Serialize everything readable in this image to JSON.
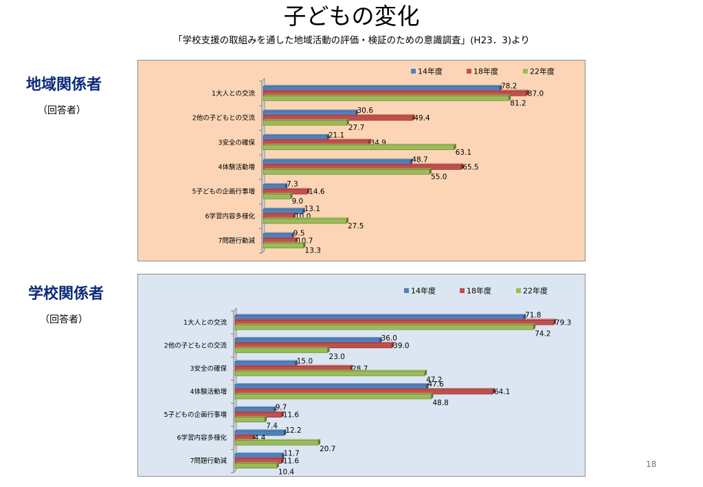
{
  "title": "子どもの変化",
  "subtitle": "「学校支援の取組みを通した地域活動の評価・検証のための意識調査」(H23．3)より",
  "page_number": "18",
  "colors": {
    "s14": "#4f81bd",
    "s18": "#c0504d",
    "s22": "#9bbb59",
    "panel1_bg": "#fbd5b5",
    "panel2_bg": "#dce6f2"
  },
  "sections": [
    {
      "heading": "地域関係者",
      "respondents": "（回答者）"
    },
    {
      "heading": "学校関係者",
      "respondents": "（回答者）"
    }
  ],
  "chart_data": [
    {
      "type": "bar",
      "orientation": "horizontal",
      "categories": [
        "1大人との交流",
        "2他の子どもとの交流",
        "3安全の確保",
        "4体験活動増",
        "5子どもの企画行事増",
        "6学習内容多様化",
        "7問題行動減"
      ],
      "series": [
        {
          "name": "14年度",
          "values": [
            78.2,
            30.6,
            21.1,
            48.7,
            7.3,
            13.1,
            9.5
          ]
        },
        {
          "name": "18年度",
          "values": [
            87.0,
            49.4,
            34.9,
            65.5,
            14.6,
            10.0,
            10.7
          ]
        },
        {
          "name": "22年度",
          "values": [
            81.2,
            27.7,
            63.1,
            55.0,
            9.0,
            27.5,
            13.3
          ]
        }
      ],
      "value_labels": [
        [
          "78.2",
          "30.6",
          "21.1",
          "48.7",
          "7.3",
          "13.1",
          "9.5"
        ],
        [
          "87.0",
          "49.4",
          "34.9",
          "65.5",
          "14.6",
          "10.0",
          "10.7"
        ],
        [
          "81.2",
          "27.7",
          "63.1",
          "55.0",
          "9.0",
          "27.5",
          "13.3"
        ]
      ],
      "legend": "top-right",
      "xlim": [
        0,
        100
      ],
      "grid": false
    },
    {
      "type": "bar",
      "orientation": "horizontal",
      "categories": [
        "1大人との交流",
        "2他の子どもとの交流",
        "3安全の確保",
        "4体験活動増",
        "5子どもの企画行事増",
        "6学習内容多様化",
        "7問題行動減"
      ],
      "series": [
        {
          "name": "14年度",
          "values": [
            71.8,
            36.0,
            15.0,
            47.6,
            9.7,
            12.2,
            11.7
          ]
        },
        {
          "name": "18年度",
          "values": [
            79.3,
            39.0,
            28.7,
            64.1,
            11.6,
            4.4,
            11.6
          ]
        },
        {
          "name": "22年度",
          "values": [
            74.2,
            23.0,
            47.2,
            48.8,
            7.4,
            20.7,
            10.4
          ]
        }
      ],
      "value_labels": [
        [
          "71.8",
          "36.0",
          "15.0",
          "47.6",
          "9.7",
          "12.2",
          "11.7"
        ],
        [
          "79.3",
          "39.0",
          "28.7",
          "64.1",
          "11.6",
          "4.4",
          "11.6"
        ],
        [
          "74.2",
          "23.0",
          "47.2",
          "48.8",
          "7.4",
          "20.7",
          "10.4"
        ]
      ],
      "legend": "top-right",
      "xlim": [
        0,
        100
      ],
      "grid": false
    }
  ]
}
